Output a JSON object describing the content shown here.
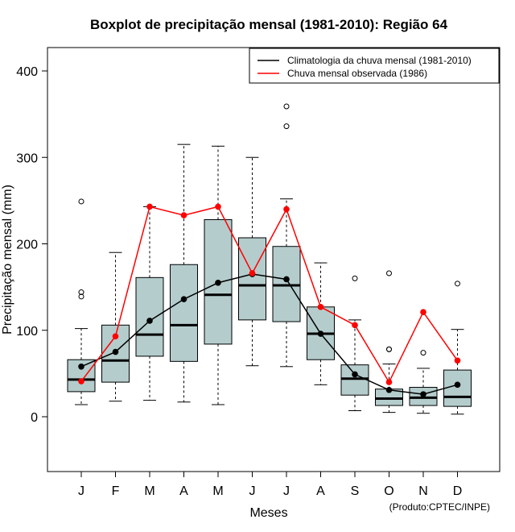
{
  "chart_data": {
    "type": "boxplot",
    "title": "Boxplot de precipitação mensal (1981-2010): Região 64",
    "xlabel": "Meses",
    "ylabel": "Precipitação mensal (mm)",
    "ylim": [
      -65,
      430
    ],
    "yticks": [
      0,
      100,
      200,
      300,
      400
    ],
    "categories": [
      "J",
      "F",
      "M",
      "A",
      "M",
      "J",
      "J",
      "A",
      "S",
      "O",
      "N",
      "D"
    ],
    "boxes": [
      {
        "whisker_low": 14,
        "q1": 29,
        "median": 43,
        "q3": 66,
        "whisker_high": 102,
        "outliers": [
          139,
          144,
          249
        ]
      },
      {
        "whisker_low": 18,
        "q1": 40,
        "median": 65,
        "q3": 106,
        "whisker_high": 190,
        "outliers": []
      },
      {
        "whisker_low": 19,
        "q1": 70,
        "median": 95,
        "q3": 161,
        "whisker_high": 243,
        "outliers": []
      },
      {
        "whisker_low": 17,
        "q1": 64,
        "median": 106,
        "q3": 176,
        "whisker_high": 315,
        "outliers": []
      },
      {
        "whisker_low": 14,
        "q1": 84,
        "median": 141,
        "q3": 228,
        "whisker_high": 313,
        "outliers": []
      },
      {
        "whisker_low": 59,
        "q1": 112,
        "median": 152,
        "q3": 207,
        "whisker_high": 300,
        "outliers": []
      },
      {
        "whisker_low": 58,
        "q1": 110,
        "median": 152,
        "q3": 197,
        "whisker_high": 252,
        "outliers": [
          336,
          359
        ]
      },
      {
        "whisker_low": 37,
        "q1": 66,
        "median": 96,
        "q3": 127,
        "whisker_high": 178,
        "outliers": []
      },
      {
        "whisker_low": 7,
        "q1": 25,
        "median": 44,
        "q3": 60,
        "whisker_high": 112,
        "outliers": [
          160
        ]
      },
      {
        "whisker_low": 5,
        "q1": 13,
        "median": 21,
        "q3": 32,
        "whisker_high": 61,
        "outliers": [
          78,
          78,
          166
        ]
      },
      {
        "whisker_low": 4,
        "q1": 13,
        "median": 22,
        "q3": 34,
        "whisker_high": 56,
        "outliers": [
          74
        ]
      },
      {
        "whisker_low": 3,
        "q1": 12,
        "median": 23,
        "q3": 54,
        "whisker_high": 101,
        "outliers": [
          154
        ]
      }
    ],
    "series": [
      {
        "name": "Climatologia da chuva mensal (1981-2010)",
        "color": "#000000",
        "values": [
          58,
          75,
          111,
          136,
          155,
          165,
          159,
          96,
          49,
          31,
          26,
          37
        ]
      },
      {
        "name": "Chuva mensal observada (1986)",
        "color": "#ff0000",
        "values": [
          41,
          93,
          243,
          233,
          243,
          166,
          240,
          127,
          106,
          40,
          121,
          65
        ]
      }
    ],
    "legend_position": "top-right",
    "box_color": "#b4cccc"
  },
  "credit": "(Produto:CPTEC/INPE)"
}
